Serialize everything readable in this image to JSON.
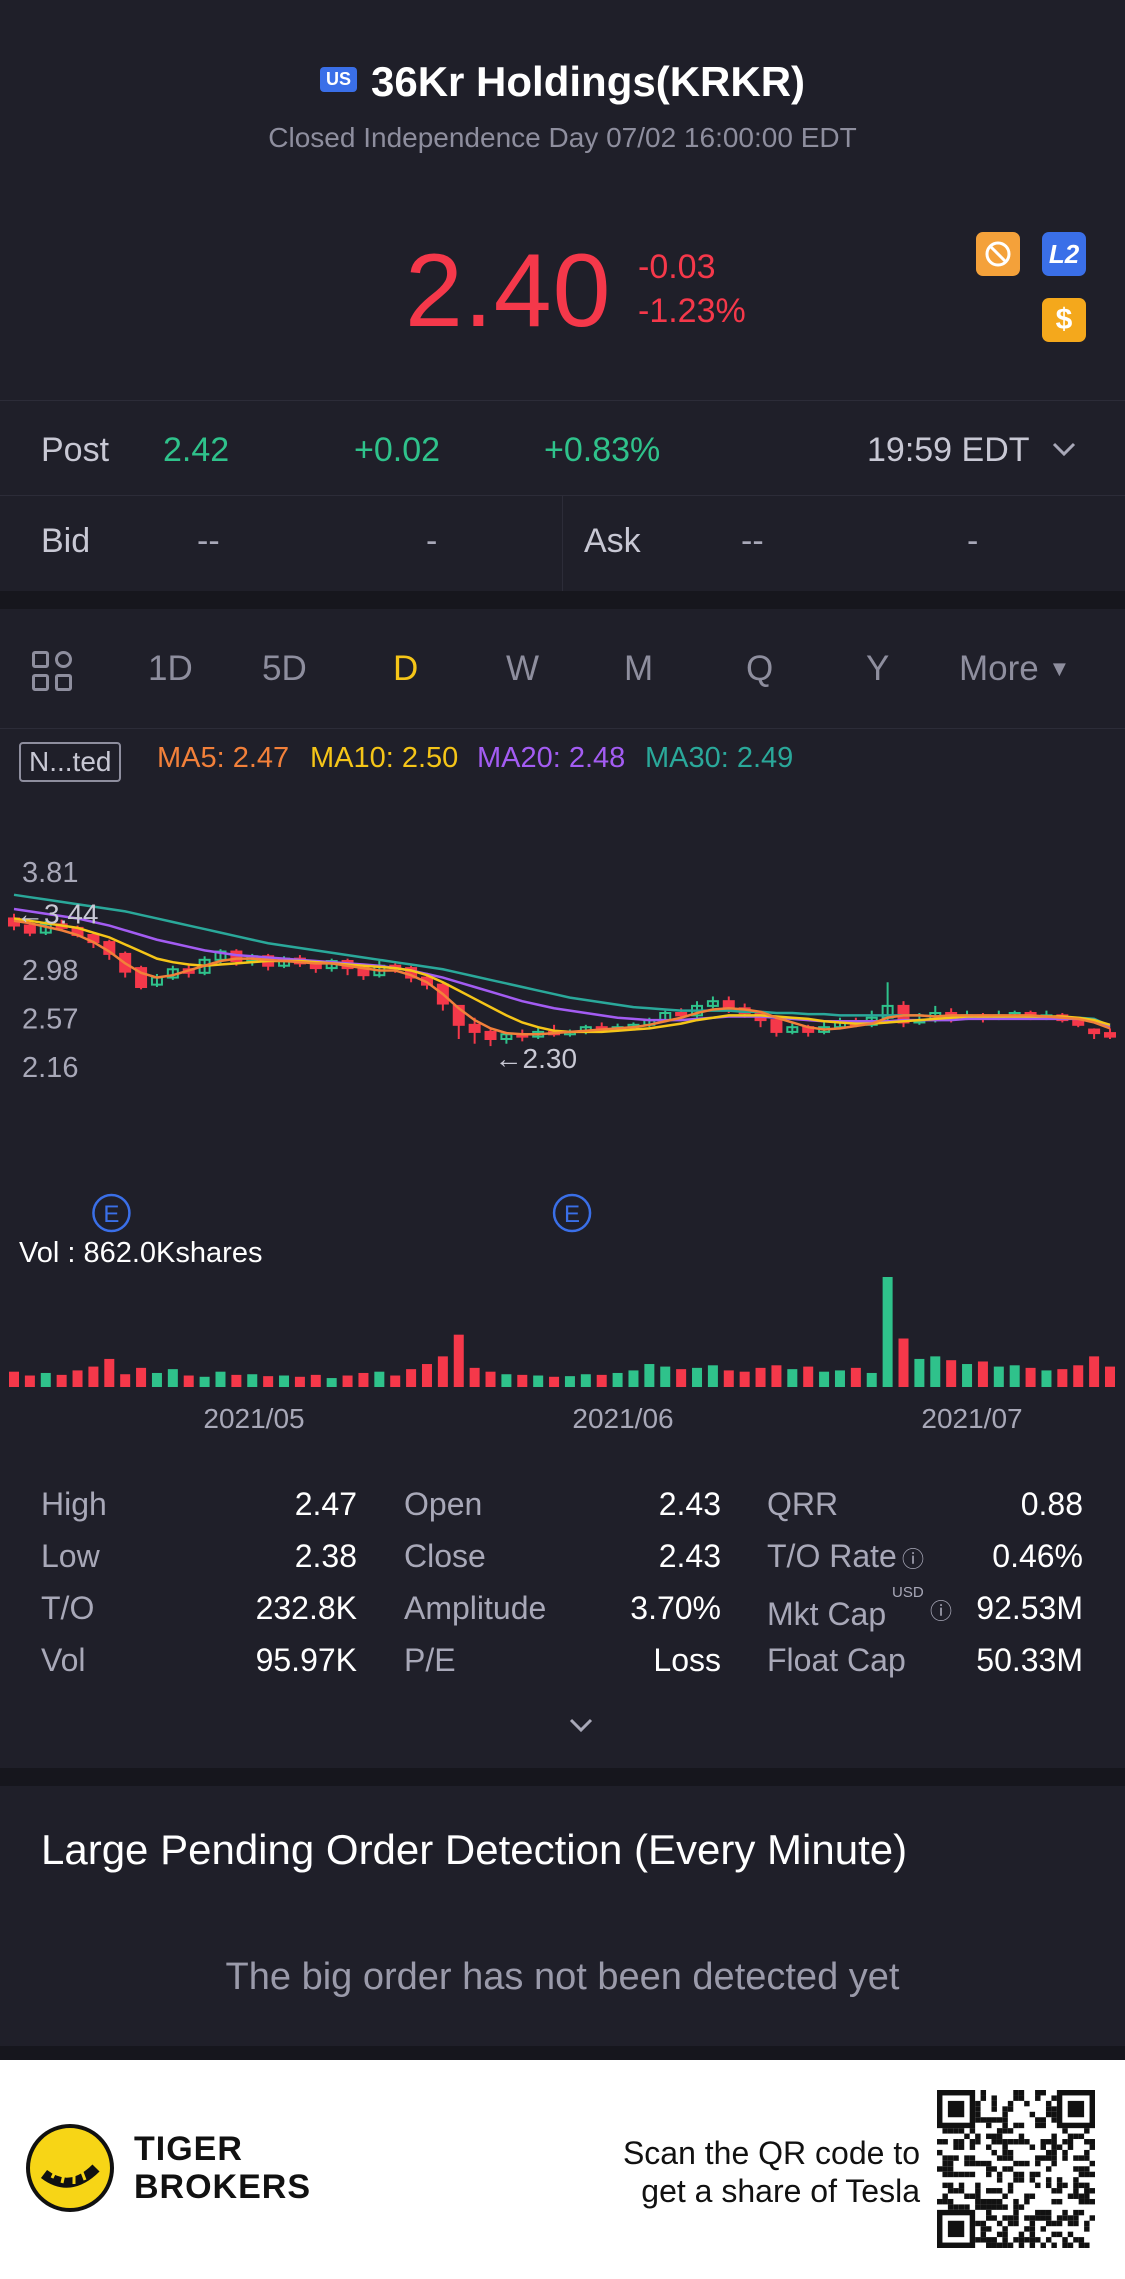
{
  "header": {
    "market_badge": "US",
    "title": "36Kr Holdings(KRKR)",
    "status": "Closed Independence Day 07/02 16:00:00 EDT",
    "price": "2.40",
    "change": "-0.03",
    "change_pct": "-1.23%",
    "icons": [
      "coin-icon",
      "level2-icon",
      "dollar-icon"
    ],
    "l2_label": "L2",
    "dollar_label": "$"
  },
  "post": {
    "label": "Post",
    "price": "2.42",
    "change": "+0.02",
    "change_pct": "+0.83%",
    "time": "19:59 EDT"
  },
  "quote": {
    "bid_label": "Bid",
    "bid_price": "--",
    "bid_size": "-",
    "ask_label": "Ask",
    "ask_price": "--",
    "ask_size": "-"
  },
  "tabs": {
    "items": [
      "1D",
      "5D",
      "D",
      "W",
      "M",
      "Q",
      "Y"
    ],
    "active": "D",
    "more_label": "More"
  },
  "indicators": {
    "adjust_label": "N...ted",
    "ma5": "MA5: 2.47",
    "ma10": "MA10: 2.50",
    "ma20": "MA20: 2.48",
    "ma30": "MA30: 2.49"
  },
  "colors": {
    "up": "#2fc28b",
    "down": "#f5384a",
    "ma5": "#f2803a",
    "ma10": "#f5c518",
    "ma20": "#a35cf2",
    "ma30": "#2aa89a",
    "event": "#3a6fe8"
  },
  "chart_data": {
    "type": "candlestick",
    "y_ticks": [
      "3.81",
      "2.98",
      "2.57",
      "2.16"
    ],
    "max_label": "3.44",
    "min_label": "2.30",
    "volume_label": "Vol  : 862.0Kshares",
    "x_ticks": [
      "2021/05",
      "2021/06",
      "2021/07"
    ],
    "event_marker": "E",
    "ylim": [
      2.16,
      3.81
    ],
    "candles": [
      [
        3.4,
        3.34,
        3.44,
        3.3
      ],
      [
        3.34,
        3.28,
        3.37,
        3.25
      ],
      [
        3.28,
        3.35,
        3.38,
        3.26
      ],
      [
        3.35,
        3.32,
        3.39,
        3.29
      ],
      [
        3.32,
        3.26,
        3.34,
        3.24
      ],
      [
        3.26,
        3.2,
        3.28,
        3.15
      ],
      [
        3.2,
        3.1,
        3.22,
        3.05
      ],
      [
        3.1,
        2.95,
        3.12,
        2.9
      ],
      [
        2.98,
        2.82,
        3.0,
        2.8
      ],
      [
        2.84,
        2.9,
        2.93,
        2.82
      ],
      [
        2.9,
        2.97,
        3.0,
        2.88
      ],
      [
        2.97,
        2.94,
        3.02,
        2.9
      ],
      [
        2.94,
        3.05,
        3.08,
        2.92
      ],
      [
        3.05,
        3.12,
        3.14,
        3.02
      ],
      [
        3.12,
        3.04,
        3.14,
        3.0
      ],
      [
        3.04,
        3.08,
        3.1,
        3.0
      ],
      [
        3.08,
        3.0,
        3.1,
        2.96
      ],
      [
        3.0,
        3.06,
        3.08,
        2.98
      ],
      [
        3.06,
        3.02,
        3.09,
        2.99
      ],
      [
        3.02,
        2.98,
        3.04,
        2.94
      ],
      [
        2.98,
        3.04,
        3.06,
        2.95
      ],
      [
        3.04,
        2.98,
        3.06,
        2.92
      ],
      [
        2.98,
        2.92,
        3.0,
        2.88
      ],
      [
        2.92,
        3.0,
        3.04,
        2.9
      ],
      [
        3.0,
        2.98,
        3.02,
        2.94
      ],
      [
        2.98,
        2.9,
        3.0,
        2.86
      ],
      [
        2.9,
        2.84,
        2.94,
        2.8
      ],
      [
        2.84,
        2.68,
        2.86,
        2.62
      ],
      [
        2.66,
        2.5,
        2.66,
        2.38
      ],
      [
        2.5,
        2.44,
        2.56,
        2.34
      ],
      [
        2.44,
        2.38,
        2.46,
        2.32
      ],
      [
        2.38,
        2.42,
        2.44,
        2.34
      ],
      [
        2.42,
        2.4,
        2.46,
        2.36
      ],
      [
        2.4,
        2.44,
        2.48,
        2.38
      ],
      [
        2.44,
        2.42,
        2.5,
        2.4
      ],
      [
        2.42,
        2.44,
        2.46,
        2.4
      ],
      [
        2.44,
        2.48,
        2.5,
        2.42
      ],
      [
        2.48,
        2.46,
        2.52,
        2.44
      ],
      [
        2.46,
        2.48,
        2.51,
        2.44
      ],
      [
        2.48,
        2.5,
        2.52,
        2.46
      ],
      [
        2.5,
        2.54,
        2.56,
        2.48
      ],
      [
        2.54,
        2.6,
        2.62,
        2.52
      ],
      [
        2.6,
        2.58,
        2.64,
        2.55
      ],
      [
        2.58,
        2.66,
        2.7,
        2.56
      ],
      [
        2.66,
        2.7,
        2.74,
        2.64
      ],
      [
        2.7,
        2.64,
        2.74,
        2.6
      ],
      [
        2.64,
        2.6,
        2.68,
        2.56
      ],
      [
        2.6,
        2.54,
        2.62,
        2.48
      ],
      [
        2.54,
        2.44,
        2.56,
        2.4
      ],
      [
        2.44,
        2.48,
        2.52,
        2.42
      ],
      [
        2.48,
        2.44,
        2.5,
        2.4
      ],
      [
        2.44,
        2.48,
        2.52,
        2.42
      ],
      [
        2.48,
        2.52,
        2.56,
        2.46
      ],
      [
        2.52,
        2.5,
        2.56,
        2.48
      ],
      [
        2.5,
        2.56,
        2.62,
        2.48
      ],
      [
        2.56,
        2.66,
        2.86,
        2.54
      ],
      [
        2.66,
        2.52,
        2.7,
        2.48
      ],
      [
        2.52,
        2.54,
        2.6,
        2.5
      ],
      [
        2.54,
        2.6,
        2.66,
        2.52
      ],
      [
        2.6,
        2.56,
        2.64,
        2.52
      ],
      [
        2.56,
        2.58,
        2.62,
        2.54
      ],
      [
        2.58,
        2.56,
        2.6,
        2.52
      ],
      [
        2.56,
        2.58,
        2.62,
        2.54
      ],
      [
        2.58,
        2.6,
        2.62,
        2.56
      ],
      [
        2.6,
        2.56,
        2.62,
        2.54
      ],
      [
        2.56,
        2.58,
        2.62,
        2.54
      ],
      [
        2.58,
        2.54,
        2.6,
        2.52
      ],
      [
        2.54,
        2.5,
        2.56,
        2.48
      ],
      [
        2.46,
        2.43,
        2.47,
        2.38
      ],
      [
        2.43,
        2.4,
        2.47,
        2.38
      ]
    ],
    "ma_series": {
      "ma5": [
        3.38,
        3.36,
        3.33,
        3.3,
        3.26,
        3.2,
        3.12,
        3.02,
        2.94,
        2.9,
        2.92,
        2.96,
        3.0,
        3.04,
        3.06,
        3.06,
        3.05,
        3.04,
        3.03,
        3.02,
        3.02,
        3.0,
        2.98,
        2.96,
        2.96,
        2.92,
        2.86,
        2.76,
        2.64,
        2.54,
        2.47,
        2.43,
        2.42,
        2.42,
        2.43,
        2.44,
        2.45,
        2.46,
        2.47,
        2.48,
        2.5,
        2.53,
        2.56,
        2.6,
        2.63,
        2.64,
        2.63,
        2.61,
        2.56,
        2.52,
        2.48,
        2.46,
        2.47,
        2.49,
        2.51,
        2.56,
        2.58,
        2.58,
        2.57,
        2.58,
        2.58,
        2.58,
        2.58,
        2.58,
        2.58,
        2.57,
        2.56,
        2.55,
        2.52,
        2.47
      ],
      "ma10": [
        3.4,
        3.38,
        3.36,
        3.34,
        3.32,
        3.28,
        3.24,
        3.18,
        3.12,
        3.06,
        3.03,
        3.01,
        3.0,
        3.01,
        3.02,
        3.03,
        3.04,
        3.04,
        3.04,
        3.03,
        3.02,
        3.01,
        3.0,
        2.99,
        2.98,
        2.96,
        2.92,
        2.86,
        2.79,
        2.72,
        2.65,
        2.58,
        2.52,
        2.48,
        2.45,
        2.44,
        2.44,
        2.44,
        2.45,
        2.46,
        2.47,
        2.49,
        2.51,
        2.54,
        2.56,
        2.58,
        2.58,
        2.58,
        2.57,
        2.56,
        2.55,
        2.53,
        2.52,
        2.51,
        2.51,
        2.52,
        2.53,
        2.54,
        2.55,
        2.56,
        2.57,
        2.57,
        2.57,
        2.57,
        2.57,
        2.57,
        2.57,
        2.56,
        2.54,
        2.5
      ],
      "ma20": [
        3.48,
        3.46,
        3.44,
        3.42,
        3.4,
        3.37,
        3.34,
        3.3,
        3.26,
        3.22,
        3.19,
        3.16,
        3.13,
        3.11,
        3.09,
        3.08,
        3.07,
        3.06,
        3.05,
        3.04,
        3.03,
        3.02,
        3.01,
        3.0,
        2.98,
        2.96,
        2.93,
        2.9,
        2.86,
        2.82,
        2.78,
        2.74,
        2.7,
        2.67,
        2.64,
        2.62,
        2.6,
        2.58,
        2.56,
        2.55,
        2.54,
        2.54,
        2.54,
        2.55,
        2.56,
        2.57,
        2.57,
        2.57,
        2.56,
        2.55,
        2.54,
        2.53,
        2.53,
        2.53,
        2.53,
        2.53,
        2.54,
        2.54,
        2.54,
        2.54,
        2.55,
        2.55,
        2.55,
        2.55,
        2.55,
        2.55,
        2.55,
        2.55,
        2.54,
        2.48
      ],
      "ma30": [
        3.6,
        3.58,
        3.56,
        3.54,
        3.52,
        3.5,
        3.48,
        3.46,
        3.43,
        3.4,
        3.37,
        3.34,
        3.31,
        3.28,
        3.25,
        3.22,
        3.19,
        3.17,
        3.15,
        3.13,
        3.11,
        3.09,
        3.07,
        3.05,
        3.03,
        3.01,
        2.99,
        2.97,
        2.94,
        2.91,
        2.88,
        2.85,
        2.82,
        2.79,
        2.76,
        2.73,
        2.71,
        2.69,
        2.67,
        2.65,
        2.64,
        2.63,
        2.62,
        2.62,
        2.62,
        2.62,
        2.61,
        2.61,
        2.6,
        2.6,
        2.59,
        2.59,
        2.58,
        2.58,
        2.58,
        2.58,
        2.58,
        2.58,
        2.57,
        2.57,
        2.57,
        2.57,
        2.57,
        2.57,
        2.57,
        2.56,
        2.56,
        2.56,
        2.55,
        2.49
      ]
    },
    "volume": [
      120,
      90,
      110,
      95,
      130,
      160,
      220,
      100,
      150,
      110,
      140,
      90,
      80,
      120,
      95,
      100,
      85,
      90,
      80,
      95,
      70,
      90,
      110,
      120,
      90,
      140,
      180,
      240,
      410,
      150,
      120,
      100,
      95,
      90,
      80,
      85,
      100,
      95,
      110,
      130,
      180,
      160,
      140,
      150,
      170,
      130,
      120,
      150,
      170,
      140,
      160,
      120,
      130,
      150,
      110,
      862,
      380,
      220,
      240,
      210,
      180,
      200,
      160,
      170,
      150,
      130,
      140,
      170,
      240,
      160
    ]
  },
  "stats": {
    "high_label": "High",
    "high": "2.47",
    "low_label": "Low",
    "low": "2.38",
    "to_label": "T/O",
    "to": "232.8K",
    "vol_label": "Vol",
    "vol": "95.97K",
    "open_label": "Open",
    "open": "2.43",
    "close_label": "Close",
    "close": "2.43",
    "amp_label": "Amplitude",
    "amp": "3.70%",
    "pe_label": "P/E",
    "pe": "Loss",
    "qrr_label": "QRR",
    "qrr": "0.88",
    "torate_label": "T/O Rate",
    "torate": "0.46%",
    "mktcap_label": "Mkt Cap",
    "mktcap_unit": "USD",
    "mktcap": "92.53M",
    "floatcap_label": "Float Cap",
    "floatcap": "50.33M"
  },
  "pending": {
    "title": "Large Pending Order Detection (Every Minute)",
    "empty": "The big order has not been detected yet"
  },
  "footer": {
    "brand_line1": "TIGER",
    "brand_line2": "BROKERS",
    "scan_line1": "Scan the QR code to",
    "scan_line2": "get a share of Tesla"
  }
}
